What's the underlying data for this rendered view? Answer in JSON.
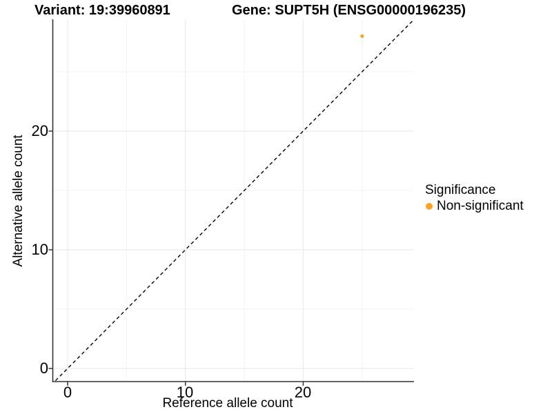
{
  "titles": {
    "variant": "Variant: 19:39960891",
    "gene": "Gene: SUPT5H (ENSG00000196235)"
  },
  "axes": {
    "x": {
      "label": "Reference allele count",
      "ticks": [
        "0",
        "10",
        "20"
      ]
    },
    "y": {
      "label": "Alternative allele count",
      "ticks": [
        "0",
        "10",
        "20"
      ]
    }
  },
  "legend": {
    "title": "Significance",
    "items": [
      {
        "label": "Non-significant",
        "color": "#FFA420"
      }
    ]
  },
  "chart_data": {
    "type": "scatter",
    "title": "Variant: 19:39960891 | Gene: SUPT5H (ENSG00000196235)",
    "xlabel": "Reference allele count",
    "ylabel": "Alternative allele count",
    "xlim": [
      -1.4,
      29.4
    ],
    "ylim": [
      -1.4,
      29.4
    ],
    "major_ticks": [
      0,
      10,
      20
    ],
    "minor_ticks": [
      5,
      15,
      25
    ],
    "grid": true,
    "legend_position": "right",
    "identity_line": {
      "type": "y=x",
      "style": "dashed",
      "color": "#000000"
    },
    "series": [
      {
        "name": "Non-significant",
        "color": "#FFA420",
        "points": [
          {
            "x": 25,
            "y": 28
          }
        ]
      }
    ],
    "colors": {
      "grid_major": "#ECECEC",
      "grid_minor": "#F4F4F4",
      "axis": "#333333"
    }
  }
}
